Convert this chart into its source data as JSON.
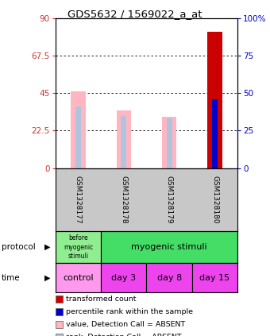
{
  "title": "GDS5632 / 1569022_a_at",
  "samples": [
    "GSM1328177",
    "GSM1328178",
    "GSM1328179",
    "GSM1328180"
  ],
  "value_bars": [
    46.0,
    34.5,
    31.0,
    82.0
  ],
  "rank_bars": [
    41.0,
    35.0,
    33.0,
    46.0
  ],
  "value_absent": [
    true,
    true,
    true,
    false
  ],
  "rank_absent": [
    true,
    true,
    true,
    false
  ],
  "ylim_left": [
    0,
    90
  ],
  "ylim_right": [
    0,
    100
  ],
  "yticks_left": [
    0,
    22.5,
    45,
    67.5,
    90
  ],
  "yticks_right": [
    0,
    25,
    50,
    75,
    100
  ],
  "ytick_labels_left": [
    "0",
    "22.5",
    "45",
    "67.5",
    "90"
  ],
  "ytick_labels_right": [
    "0",
    "25",
    "50",
    "75",
    "100%"
  ],
  "color_value_absent": "#FFB6C1",
  "color_rank_absent": "#B0C4DE",
  "color_value_present": "#CC0000",
  "color_rank_present": "#0000CC",
  "left_axis_color": "#CC3333",
  "right_axis_color": "#0000CC",
  "sample_bg": "#C8C8C8",
  "protocol_col0_color": "#90EE90",
  "protocol_col13_color": "#44DD66",
  "time_col0_color": "#FF99EE",
  "time_col13_color": "#EE44EE",
  "time_row": [
    "control",
    "day 3",
    "day 8",
    "day 15"
  ],
  "legend_items": [
    [
      "#CC0000",
      "transformed count"
    ],
    [
      "#0000CC",
      "percentile rank within the sample"
    ],
    [
      "#FFB6C1",
      "value, Detection Call = ABSENT"
    ],
    [
      "#B0C4DE",
      "rank, Detection Call = ABSENT"
    ]
  ]
}
